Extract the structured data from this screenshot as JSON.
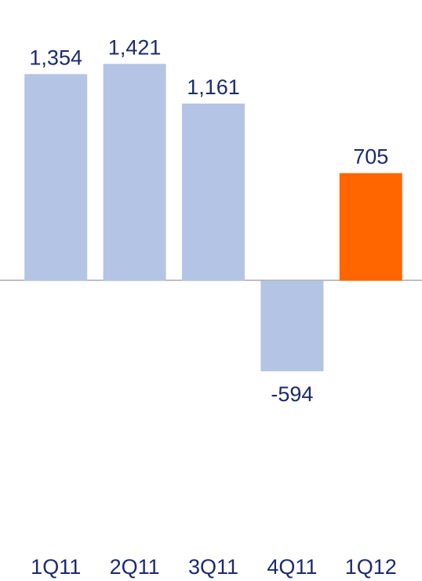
{
  "chart_data": {
    "type": "bar",
    "categories": [
      "1Q11",
      "2Q11",
      "3Q11",
      "4Q11",
      "1Q12"
    ],
    "values": [
      1354,
      1421,
      1161,
      -594,
      705
    ],
    "value_labels": [
      "1,354",
      "1,421",
      "1,161",
      "-594",
      "705"
    ],
    "colors": [
      "#b4c4e4",
      "#b4c4e4",
      "#b4c4e4",
      "#b4c4e4",
      "#ff6600"
    ],
    "ylim": [
      -1500,
      1500
    ]
  }
}
